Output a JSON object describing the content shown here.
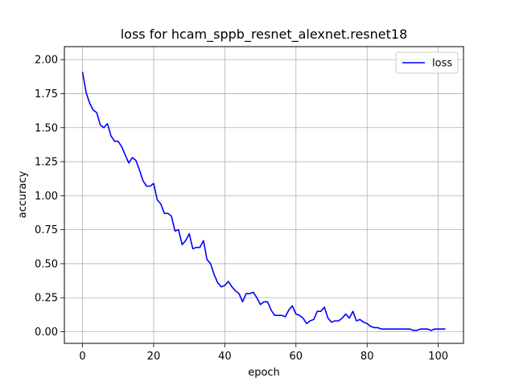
{
  "chart_data": {
    "type": "line",
    "title": "loss for hcam_sppb_resnet_alexnet.resnet18",
    "xlabel": "epoch",
    "ylabel": "accuracy",
    "xlim": [
      -5.1,
      107.1
    ],
    "ylim": [
      -0.0855,
      2.0955
    ],
    "x_ticks": [
      0,
      20,
      40,
      60,
      80,
      100
    ],
    "y_ticks": [
      0.0,
      0.25,
      0.5,
      0.75,
      1.0,
      1.25,
      1.5,
      1.75,
      2.0
    ],
    "x_tick_labels": [
      "0",
      "20",
      "40",
      "60",
      "80",
      "100"
    ],
    "y_tick_labels": [
      "0.00",
      "0.25",
      "0.50",
      "0.75",
      "1.00",
      "1.25",
      "1.50",
      "1.75",
      "2.00"
    ],
    "grid": true,
    "legend_position": "top-right",
    "series": [
      {
        "name": "loss",
        "color": "#0000ff",
        "x": [
          0,
          1,
          2,
          3,
          4,
          5,
          6,
          7,
          8,
          9,
          10,
          11,
          12,
          13,
          14,
          15,
          16,
          17,
          18,
          19,
          20,
          21,
          22,
          23,
          24,
          25,
          26,
          27,
          28,
          29,
          30,
          31,
          32,
          33,
          34,
          35,
          36,
          37,
          38,
          39,
          40,
          41,
          42,
          43,
          44,
          45,
          46,
          47,
          48,
          49,
          50,
          51,
          52,
          53,
          54,
          55,
          56,
          57,
          58,
          59,
          60,
          61,
          62,
          63,
          64,
          65,
          66,
          67,
          68,
          69,
          70,
          71,
          72,
          73,
          74,
          75,
          76,
          77,
          78,
          79,
          80,
          81,
          82,
          83,
          84,
          85,
          86,
          87,
          88,
          89,
          90,
          91,
          92,
          93,
          94,
          95,
          96,
          97,
          98,
          99,
          100,
          101,
          102
        ],
        "values": [
          1.91,
          1.76,
          1.68,
          1.63,
          1.61,
          1.52,
          1.5,
          1.53,
          1.44,
          1.4,
          1.4,
          1.36,
          1.3,
          1.24,
          1.28,
          1.26,
          1.19,
          1.11,
          1.07,
          1.07,
          1.09,
          0.97,
          0.94,
          0.87,
          0.87,
          0.85,
          0.74,
          0.75,
          0.64,
          0.67,
          0.72,
          0.61,
          0.62,
          0.62,
          0.67,
          0.53,
          0.5,
          0.42,
          0.36,
          0.33,
          0.34,
          0.37,
          0.33,
          0.3,
          0.28,
          0.22,
          0.28,
          0.28,
          0.29,
          0.25,
          0.2,
          0.22,
          0.22,
          0.16,
          0.12,
          0.12,
          0.12,
          0.11,
          0.16,
          0.19,
          0.13,
          0.12,
          0.1,
          0.06,
          0.08,
          0.09,
          0.15,
          0.15,
          0.18,
          0.1,
          0.07,
          0.08,
          0.08,
          0.1,
          0.13,
          0.1,
          0.15,
          0.08,
          0.09,
          0.07,
          0.06,
          0.04,
          0.03,
          0.03,
          0.02,
          0.02,
          0.02,
          0.02,
          0.02,
          0.02,
          0.02,
          0.02,
          0.02,
          0.01,
          0.01,
          0.02,
          0.02,
          0.02,
          0.01,
          0.02,
          0.02,
          0.02,
          0.02
        ]
      }
    ]
  }
}
